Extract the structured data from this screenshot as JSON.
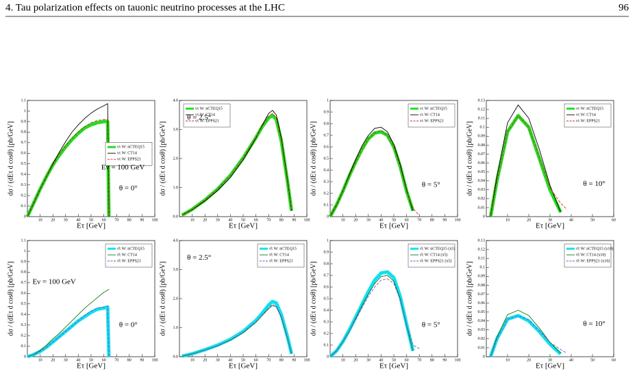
{
  "header": {
    "section": "4. Tau polarization effects on tauonic neutrino processes at the LHC",
    "page": "96"
  },
  "chart_data": [
    {
      "type": "line",
      "xlabel": "Eτ [GeV]",
      "ylabel": "dσ / (dEτ d cosθ) [pb/GeV]",
      "annotations": [
        "Eν = 100 GeV",
        "θ = 0°"
      ],
      "legend_loc": "center right",
      "xlim": [
        0,
        100
      ],
      "xticks": [
        10,
        20,
        30,
        40,
        50,
        60,
        70,
        80,
        90,
        100
      ],
      "ylim": [
        0,
        1.1
      ],
      "yticks": [
        0,
        0.1,
        0.2,
        0.3,
        0.4,
        0.5,
        0.6,
        0.7,
        0.8,
        0.9,
        1,
        1.1
      ],
      "x": [
        0,
        5,
        10,
        15,
        20,
        25,
        30,
        35,
        40,
        45,
        50,
        55,
        60,
        63,
        64
      ],
      "series": [
        {
          "name": "ντ W: nCTEQ15",
          "color": "#22dd22",
          "band": true,
          "values": [
            0,
            0.13,
            0.26,
            0.38,
            0.49,
            0.58,
            0.66,
            0.73,
            0.79,
            0.84,
            0.87,
            0.89,
            0.9,
            0.9,
            0
          ]
        },
        {
          "name": "ντ W: CT14",
          "color": "#000000",
          "values": [
            0,
            0.13,
            0.26,
            0.38,
            0.5,
            0.61,
            0.71,
            0.8,
            0.87,
            0.93,
            0.98,
            1.02,
            1.05,
            1.07,
            0
          ]
        },
        {
          "name": "ντ W: EPPS21",
          "color": "#dd2222",
          "dash": true,
          "values": [
            0,
            0.13,
            0.26,
            0.38,
            0.49,
            0.59,
            0.67,
            0.74,
            0.8,
            0.85,
            0.89,
            0.91,
            0.92,
            0.92,
            0
          ]
        }
      ]
    },
    {
      "type": "line",
      "xlabel": "Eτ [GeV]",
      "ylabel": "dσ / (dEτ d cosθ) [pb/GeV]",
      "annotations": [
        "θ = 2.5°"
      ],
      "legend_loc": "upper left",
      "xlim": [
        0,
        100
      ],
      "xticks": [
        10,
        20,
        30,
        40,
        50,
        60,
        70,
        80,
        90,
        100
      ],
      "ylim": [
        0,
        4
      ],
      "yticks": [
        {
          "value": 0,
          "label": "0.0"
        },
        {
          "value": 1,
          "label": "1.0"
        },
        {
          "value": 2,
          "label": "2.0"
        },
        {
          "value": 3,
          "label": "3.0"
        },
        {
          "value": 4,
          "label": "4.0"
        }
      ],
      "x": [
        2,
        10,
        20,
        30,
        40,
        50,
        60,
        65,
        70,
        73,
        76,
        80,
        85,
        88
      ],
      "series": [
        {
          "name": "ντ W: nCTEQ15",
          "color": "#22dd22",
          "band": true,
          "values": [
            0.05,
            0.25,
            0.57,
            0.95,
            1.42,
            2.02,
            2.72,
            3.1,
            3.4,
            3.48,
            3.35,
            2.6,
            1.15,
            0.2
          ]
        },
        {
          "name": "ντ W: CT14",
          "color": "#000000",
          "values": [
            0.05,
            0.24,
            0.54,
            0.9,
            1.35,
            1.95,
            2.7,
            3.15,
            3.55,
            3.66,
            3.5,
            2.7,
            1.2,
            0.2
          ]
        },
        {
          "name": "ντ W: EPPS21",
          "color": "#dd2222",
          "dash": true,
          "values": [
            0.05,
            0.25,
            0.57,
            0.95,
            1.42,
            2.02,
            2.72,
            3.12,
            3.45,
            3.55,
            3.4,
            2.62,
            1.15,
            0.2
          ]
        }
      ]
    },
    {
      "type": "line",
      "xlabel": "Eτ [GeV]",
      "ylabel": "dσ / (dEτ d cosθ) [pb/GeV]",
      "annotations": [
        "θ = 5°"
      ],
      "legend_loc": "upper right",
      "xlim": [
        0,
        100
      ],
      "xticks": [
        10,
        20,
        30,
        40,
        50,
        60,
        70,
        80,
        90,
        100
      ],
      "ylim": [
        0,
        1
      ],
      "yticks": [
        0,
        0.1,
        0.2,
        0.3,
        0.4,
        0.5,
        0.6,
        0.7,
        0.8,
        0.9,
        1
      ],
      "x": [
        0,
        5,
        10,
        15,
        20,
        25,
        30,
        35,
        40,
        45,
        50,
        55,
        60,
        65,
        70
      ],
      "series": [
        {
          "name": "ντ W: nCTEQ15",
          "color": "#22dd22",
          "band": true,
          "values": [
            0,
            0.1,
            0.22,
            0.35,
            0.47,
            0.58,
            0.67,
            0.72,
            0.73,
            0.7,
            0.6,
            0.43,
            0.22,
            0.05,
            null
          ]
        },
        {
          "name": "ντ W: CT14",
          "color": "#000000",
          "values": [
            0,
            0.1,
            0.22,
            0.36,
            0.49,
            0.61,
            0.7,
            0.76,
            0.77,
            0.73,
            0.62,
            0.45,
            0.23,
            0.05,
            null
          ]
        },
        {
          "name": "ντ W: EPPS21",
          "color": "#dd2222",
          "dash": true,
          "values": [
            0,
            0.1,
            0.22,
            0.35,
            0.47,
            0.58,
            0.67,
            0.72,
            0.74,
            0.7,
            0.6,
            0.43,
            0.22,
            0.07,
            0.01
          ]
        }
      ]
    },
    {
      "type": "line",
      "xlabel": "Eτ [GeV]",
      "ylabel": "dσ / (dEτ d cosθ) [pb/GeV]",
      "annotations": [
        "θ = 10°"
      ],
      "legend_loc": "upper right",
      "xlim": [
        0,
        60
      ],
      "xticks": [
        10,
        20,
        30,
        40,
        50,
        60
      ],
      "ylim": [
        0,
        0.13
      ],
      "yticks": [
        0,
        0.01,
        0.02,
        0.03,
        0.04,
        0.05,
        0.06,
        0.07,
        0.08,
        0.09,
        0.1,
        0.11,
        0.12,
        0.13
      ],
      "x": [
        2,
        5,
        10,
        15,
        20,
        25,
        30,
        35,
        38
      ],
      "series": [
        {
          "name": "ντ W: nCTEQ15",
          "color": "#22dd22",
          "band": true,
          "values": [
            0,
            0.04,
            0.095,
            0.113,
            0.1,
            0.065,
            0.03,
            0.005,
            null
          ]
        },
        {
          "name": "ντ W: CT14",
          "color": "#000000",
          "values": [
            0,
            0.045,
            0.105,
            0.125,
            0.11,
            0.075,
            0.035,
            0.005,
            null
          ]
        },
        {
          "name": "ντ W: EPPS21",
          "color": "#dd2222",
          "dash": true,
          "values": [
            0,
            0.04,
            0.095,
            0.113,
            0.1,
            0.066,
            0.032,
            0.015,
            0.008
          ]
        }
      ]
    },
    {
      "type": "line",
      "xlabel": "Eτ [GeV]",
      "ylabel": "dσ / (dEτ d cosθ) [pb/GeV]",
      "annotations": [
        "Eν = 100 GeV",
        "θ = 0°"
      ],
      "legend_loc": "upper right",
      "xlim": [
        0,
        100
      ],
      "xticks": [
        10,
        20,
        30,
        40,
        50,
        60,
        70,
        80,
        90,
        100
      ],
      "ylim": [
        0,
        1.1
      ],
      "yticks": [
        0,
        0.1,
        0.2,
        0.3,
        0.4,
        0.5,
        0.6,
        0.7,
        0.8,
        0.9,
        1,
        1.1
      ],
      "x": [
        0,
        5,
        10,
        15,
        20,
        25,
        30,
        35,
        40,
        45,
        50,
        55,
        60,
        63,
        64
      ],
      "series": [
        {
          "name": "ν̄τ W: nCTEQ15",
          "color": "#11e0f0",
          "band": true,
          "values": [
            0,
            0.02,
            0.05,
            0.09,
            0.14,
            0.19,
            0.24,
            0.29,
            0.34,
            0.38,
            0.42,
            0.45,
            0.46,
            0.47,
            0
          ]
        },
        {
          "name": "ν̄τ W: CT14",
          "color": "#117711",
          "values": [
            0,
            0.02,
            0.06,
            0.11,
            0.17,
            0.22,
            0.28,
            0.34,
            0.4,
            0.46,
            0.51,
            0.56,
            0.61,
            0.63,
            0.64
          ]
        },
        {
          "name": "ν̄τ W: EPPS21",
          "color": "#8844cc",
          "dash": true,
          "values": [
            0,
            0.02,
            0.05,
            0.09,
            0.14,
            0.19,
            0.24,
            0.29,
            0.34,
            0.39,
            0.43,
            0.46,
            0.47,
            0.48,
            0
          ]
        }
      ]
    },
    {
      "type": "line",
      "xlabel": "Eτ [GeV]",
      "ylabel": "dσ / (dEτ d cosθ) [pb/GeV]",
      "annotations": [
        "θ = 2.5°"
      ],
      "legend_loc": "upper right",
      "xlim": [
        0,
        100
      ],
      "xticks": [
        10,
        20,
        30,
        40,
        50,
        60,
        70,
        80,
        90,
        100
      ],
      "ylim": [
        0,
        4
      ],
      "yticks": [
        {
          "value": 0,
          "label": "0.0"
        },
        {
          "value": 1,
          "label": "1.0"
        },
        {
          "value": 2,
          "label": "2.0"
        },
        {
          "value": 3,
          "label": "3.0"
        },
        {
          "value": 4,
          "label": "4.0"
        }
      ],
      "x": [
        2,
        10,
        20,
        30,
        40,
        50,
        60,
        65,
        70,
        73,
        76,
        80,
        85,
        88
      ],
      "series": [
        {
          "name": "ν̄τ W: nCTEQ15",
          "color": "#11e0f0",
          "band": true,
          "values": [
            0.02,
            0.1,
            0.24,
            0.4,
            0.6,
            0.87,
            1.25,
            1.5,
            1.78,
            1.9,
            1.85,
            1.45,
            0.65,
            0.1
          ]
        },
        {
          "name": "ν̄τ W: CT14",
          "color": "#117711",
          "values": [
            0.02,
            0.1,
            0.23,
            0.38,
            0.57,
            0.83,
            1.18,
            1.42,
            1.65,
            1.76,
            1.72,
            1.35,
            0.6,
            0.1
          ]
        },
        {
          "name": "ν̄τ W: EPPS21",
          "color": "#8844cc",
          "dash": true,
          "values": [
            0.02,
            0.1,
            0.23,
            0.38,
            0.58,
            0.84,
            1.2,
            1.44,
            1.68,
            1.8,
            1.75,
            1.38,
            0.62,
            0.1
          ]
        }
      ]
    },
    {
      "type": "line",
      "xlabel": "Eτ [GeV]",
      "ylabel": "dσ / (dEτ d cosθ) [pb/GeV]",
      "annotations": [
        "θ = 5°"
      ],
      "legend_loc": "upper right",
      "xlim": [
        0,
        100
      ],
      "xticks": [
        10,
        20,
        30,
        40,
        50,
        60,
        70,
        80,
        90,
        100
      ],
      "ylim": [
        0,
        1
      ],
      "yticks": [
        0,
        0.1,
        0.2,
        0.3,
        0.4,
        0.5,
        0.6,
        0.7,
        0.8,
        0.9,
        1
      ],
      "x": [
        0,
        5,
        10,
        15,
        20,
        25,
        30,
        35,
        40,
        45,
        50,
        55,
        60,
        65,
        70
      ],
      "series": [
        {
          "name": "ν̄τ W: nCTEQ15 (x5)",
          "color": "#11e0f0",
          "band": true,
          "values": [
            0,
            0.05,
            0.13,
            0.23,
            0.34,
            0.45,
            0.56,
            0.66,
            0.72,
            0.73,
            0.68,
            0.52,
            0.28,
            0.05,
            null
          ]
        },
        {
          "name": "ν̄τ W: CT14 (x5)",
          "color": "#117711",
          "values": [
            0,
            0.05,
            0.13,
            0.22,
            0.33,
            0.44,
            0.54,
            0.63,
            0.69,
            0.7,
            0.65,
            0.5,
            0.27,
            0.05,
            null
          ]
        },
        {
          "name": "ν̄τ W: EPPS21 (x5)",
          "color": "#8844cc",
          "dash": true,
          "values": [
            0,
            0.05,
            0.13,
            0.22,
            0.32,
            0.42,
            0.52,
            0.6,
            0.66,
            0.67,
            0.63,
            0.49,
            0.27,
            0.1,
            0.07
          ]
        }
      ]
    },
    {
      "type": "line",
      "xlabel": "Eτ [GeV]",
      "ylabel": "dσ / (dEτ d cosθ) [pb/GeV]",
      "annotations": [
        "θ = 10°"
      ],
      "legend_loc": "upper right",
      "xlim": [
        0,
        60
      ],
      "xticks": [
        10,
        20,
        30,
        40,
        50,
        60
      ],
      "ylim": [
        0,
        0.13
      ],
      "yticks": [
        0,
        0.01,
        0.02,
        0.03,
        0.04,
        0.05,
        0.06,
        0.07,
        0.08,
        0.09,
        0.1,
        0.11,
        0.12,
        0.13
      ],
      "x": [
        2,
        5,
        10,
        15,
        20,
        25,
        30,
        35,
        38
      ],
      "series": [
        {
          "name": "ν̄τ W: nCTEQ15 (x10)",
          "color": "#11e0f0",
          "band": true,
          "values": [
            0,
            0.02,
            0.042,
            0.046,
            0.04,
            0.028,
            0.014,
            0.003,
            null
          ]
        },
        {
          "name": "ν̄τ W: CT14 (x10)",
          "color": "#117711",
          "values": [
            0,
            0.022,
            0.047,
            0.052,
            0.046,
            0.032,
            0.016,
            0.004,
            null
          ]
        },
        {
          "name": "ν̄τ W: EPPS21 (x10)",
          "color": "#8844cc",
          "dash": true,
          "values": [
            0,
            0.02,
            0.042,
            0.046,
            0.041,
            0.029,
            0.016,
            0.008,
            0.004
          ]
        }
      ]
    }
  ]
}
